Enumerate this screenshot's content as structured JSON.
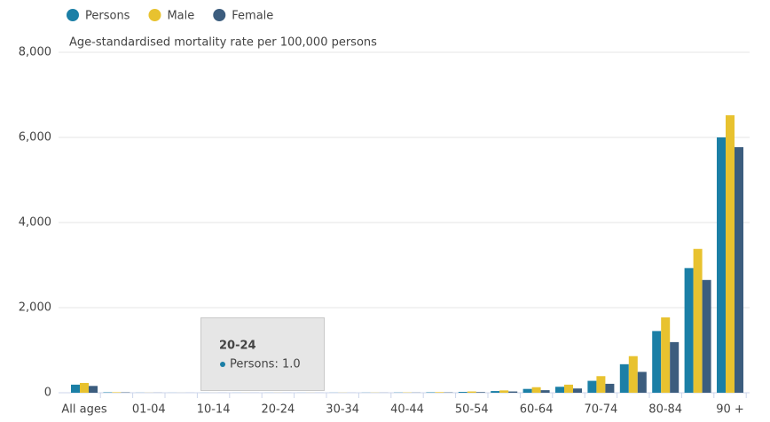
{
  "chart_data": {
    "type": "bar",
    "y_label": "Age-standardised mortality rate per 100,000 persons",
    "categories": [
      "All ages",
      null,
      "01-04",
      null,
      "10-14",
      null,
      "20-24",
      null,
      "30-34",
      null,
      "40-44",
      null,
      "50-54",
      null,
      "60-64",
      null,
      "70-74",
      null,
      "80-84",
      null,
      "90 +"
    ],
    "series": [
      {
        "name": "Persons",
        "color": "#1b7fa6",
        "values": [
          190,
          10,
          2,
          1,
          1,
          1,
          1,
          1,
          2,
          3,
          5,
          10,
          20,
          40,
          90,
          140,
          280,
          670,
          1450,
          2930,
          6000
        ]
      },
      {
        "name": "Male",
        "color": "#e8c22f",
        "values": [
          230,
          12,
          2,
          1,
          1,
          2,
          2,
          2,
          3,
          4,
          7,
          14,
          30,
          55,
          130,
          190,
          390,
          860,
          1770,
          3380,
          6520
        ]
      },
      {
        "name": "Female",
        "color": "#3c5d7e",
        "values": [
          160,
          9,
          2,
          1,
          1,
          1,
          1,
          1,
          1,
          2,
          4,
          8,
          15,
          30,
          60,
          100,
          210,
          490,
          1190,
          2650,
          5770
        ]
      }
    ],
    "ylim": [
      0,
      8000
    ],
    "yticks": [
      0,
      {
        "value": 2000,
        "label": "2,000"
      },
      {
        "value": 4000,
        "label": "4,000"
      },
      {
        "value": 6000,
        "label": "6,000"
      },
      {
        "value": 8000,
        "label": "8,000"
      }
    ],
    "grid": true,
    "legend": "top-left",
    "tooltip": {
      "title": "20-24",
      "text": "Persons: 1.0"
    }
  }
}
